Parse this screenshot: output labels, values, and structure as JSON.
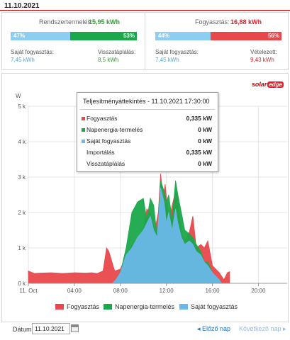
{
  "header": {
    "date": "11.10.2021"
  },
  "production": {
    "title": "Rendszertermelés:",
    "value": "15,95 kWh",
    "bar_left_pct": "47%",
    "bar_right_pct": "53%",
    "bar_left_fraction": 0.47,
    "self_label": "Saját fogyasztás:",
    "self_value": "7,45 kWh",
    "feed_label": "Visszatáplálás:",
    "feed_value": "8,5 kWh"
  },
  "consumption": {
    "title": "Fogyasztás:",
    "value": "16,88 kWh",
    "bar_left_pct": "44%",
    "bar_right_pct": "56%",
    "bar_left_fraction": 0.44,
    "self_label": "Saját fogyasztás:",
    "self_value": "7,45 kWh",
    "purchase_label": "Vételezett:",
    "purchase_value": "9,43 kWh"
  },
  "colors": {
    "consumption": "#e8484b",
    "production": "#1aa84a",
    "self_consumption": "#69b8e8",
    "accent_green": "#3a9a3a",
    "accent_red": "#d9232c"
  },
  "logo": {
    "text": "solar",
    "badge": "edge"
  },
  "tooltip": {
    "title": "Teljesítményáttekintés - 11.10.2021 17:30:00",
    "rows": [
      {
        "name": "Fogyasztás",
        "value": "0,335 kW",
        "color": "#e8484b"
      },
      {
        "name": "Napenergia-termelés",
        "value": "0 kW",
        "color": "#1aa84a"
      },
      {
        "name": "Saját fogyasztás",
        "value": "0 kW",
        "color": "#69b8e8"
      },
      {
        "name": "Importálás",
        "value": "0,335 kW",
        "color": ""
      },
      {
        "name": "Visszatáplálás",
        "value": "0 kW",
        "color": ""
      }
    ]
  },
  "chart_data": {
    "type": "area",
    "ylabel": "W",
    "y_ticks": [
      "0 k",
      "1 k",
      "2 k",
      "3 k",
      "4 k",
      "5 k"
    ],
    "ylim": [
      0,
      5000
    ],
    "x_ticks": [
      "11. Oct",
      "04:00",
      "08:00",
      "12:00",
      "16:00",
      "20:00"
    ],
    "x_tick_hours": [
      0,
      4,
      8,
      12,
      16,
      20
    ],
    "xlim_hours": [
      0,
      22.5
    ],
    "grid": true,
    "series": [
      {
        "name": "Fogyasztás",
        "color": "#e8484b",
        "x": [
          0,
          0.5,
          1,
          2,
          3,
          4,
          5,
          5.5,
          6,
          6.5,
          6.8,
          7,
          7.5,
          8,
          8.5,
          9,
          9.5,
          10,
          10.3,
          10.6,
          11,
          11.3,
          11.5,
          11.7,
          11.9,
          12.2,
          12.5,
          12.8,
          13,
          13.3,
          13.6,
          14,
          14.3,
          14.6,
          15,
          15.3,
          15.6,
          16,
          16.3,
          16.6,
          17,
          17.3,
          17.5,
          17.5
        ],
        "values": [
          350,
          280,
          290,
          300,
          280,
          300,
          290,
          300,
          280,
          350,
          1000,
          900,
          350,
          400,
          800,
          1050,
          1300,
          1500,
          2100,
          2000,
          1500,
          2000,
          3100,
          2400,
          2800,
          1700,
          2200,
          2600,
          2400,
          1400,
          1200,
          1450,
          1900,
          1000,
          1100,
          1000,
          1200,
          500,
          400,
          300,
          100,
          300,
          330,
          0
        ]
      },
      {
        "name": "Napenergia-termelés",
        "color": "#1aa84a",
        "x": [
          7.3,
          7.6,
          8,
          8.5,
          9,
          9.5,
          10,
          10.3,
          10.6,
          10.9,
          11.2,
          11.5,
          11.8,
          12,
          12.2,
          12.5,
          12.8,
          13,
          13.3,
          13.6,
          14,
          14.3,
          14.6,
          15,
          15.3,
          15.6,
          16,
          16.3,
          16.6,
          16.8
        ],
        "values": [
          0,
          100,
          300,
          1000,
          2000,
          2300,
          2400,
          1800,
          2400,
          2200,
          1300,
          2900,
          2600,
          2300,
          2500,
          1800,
          2900,
          2500,
          2000,
          1500,
          1400,
          1300,
          1100,
          900,
          600,
          600,
          300,
          200,
          100,
          0
        ]
      },
      {
        "name": "Saját fogyasztás",
        "color": "#69b8e8",
        "x": [
          7.3,
          7.6,
          8,
          8.5,
          9,
          9.5,
          10,
          10.3,
          10.6,
          10.9,
          11.2,
          11.5,
          11.8,
          12,
          12.2,
          12.5,
          12.8,
          13,
          13.3,
          13.6,
          14,
          14.3,
          14.6,
          15,
          15.3,
          15.6,
          16,
          16.3,
          16.6,
          16.8
        ],
        "values": [
          0,
          100,
          300,
          800,
          1000,
          1300,
          1500,
          1700,
          1900,
          1500,
          1300,
          2700,
          2300,
          1700,
          2000,
          1500,
          2100,
          1700,
          1300,
          1100,
          1200,
          1100,
          900,
          800,
          600,
          500,
          300,
          200,
          100,
          0
        ]
      }
    ]
  },
  "legend": [
    {
      "name": "Fogyasztás",
      "color": "#e8484b"
    },
    {
      "name": "Napenergia-termelés",
      "color": "#1aa84a"
    },
    {
      "name": "Saját fogyasztás",
      "color": "#69b8e8"
    }
  ],
  "footer": {
    "date_label": "Dátum:",
    "date_value": "11.10.2021",
    "prev_label": "Előző nap",
    "next_label": "Következő nap"
  }
}
